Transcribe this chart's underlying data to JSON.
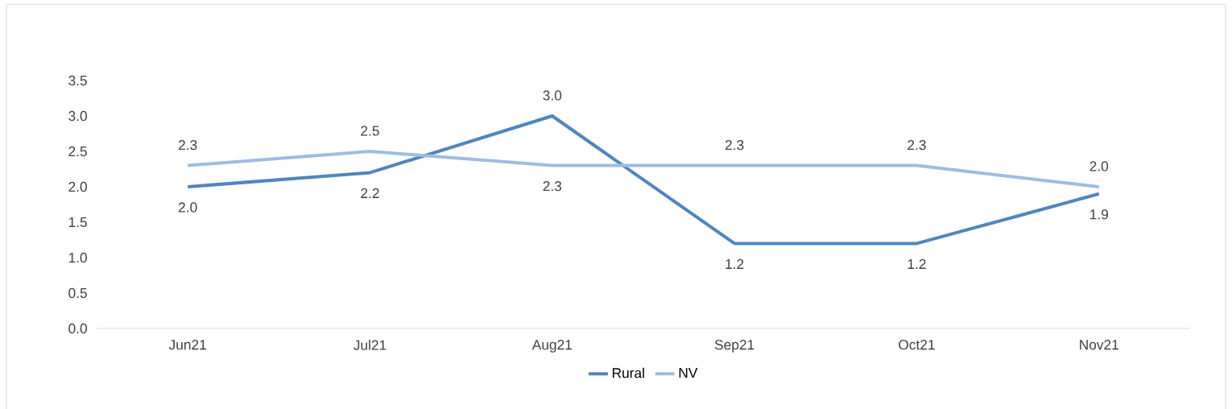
{
  "chart_data": {
    "type": "line",
    "categories": [
      "Jun21",
      "Jul21",
      "Aug21",
      "Sep21",
      "Oct21",
      "Nov21"
    ],
    "series": [
      {
        "name": "Rural",
        "color": "#4f86bd",
        "values": [
          2.0,
          2.2,
          3.0,
          1.2,
          1.2,
          1.9
        ],
        "value_labels": [
          "2.0",
          "2.2",
          "3.0",
          "1.2",
          "1.2",
          "1.9"
        ]
      },
      {
        "name": "NV",
        "color": "#9dbde0",
        "values": [
          2.3,
          2.5,
          2.3,
          2.3,
          2.3,
          2.0
        ],
        "value_labels": [
          "2.3",
          "2.5",
          "2.3",
          "2.3",
          "2.3",
          "2.0"
        ]
      }
    ],
    "ylim": [
      0,
      3.5
    ],
    "yticks": [
      {
        "value": 0,
        "label": "0.0"
      },
      {
        "value": 0.5,
        "label": "0.5"
      },
      {
        "value": 1,
        "label": "1.0"
      },
      {
        "value": 1.5,
        "label": "1.5"
      },
      {
        "value": 2,
        "label": "2.0"
      },
      {
        "value": 2.5,
        "label": "2.5"
      },
      {
        "value": 3,
        "label": "3.0"
      },
      {
        "value": 3.5,
        "label": "3.5"
      }
    ],
    "grid": false,
    "legend": "bottom",
    "marker": "none",
    "line_style": "solid"
  }
}
